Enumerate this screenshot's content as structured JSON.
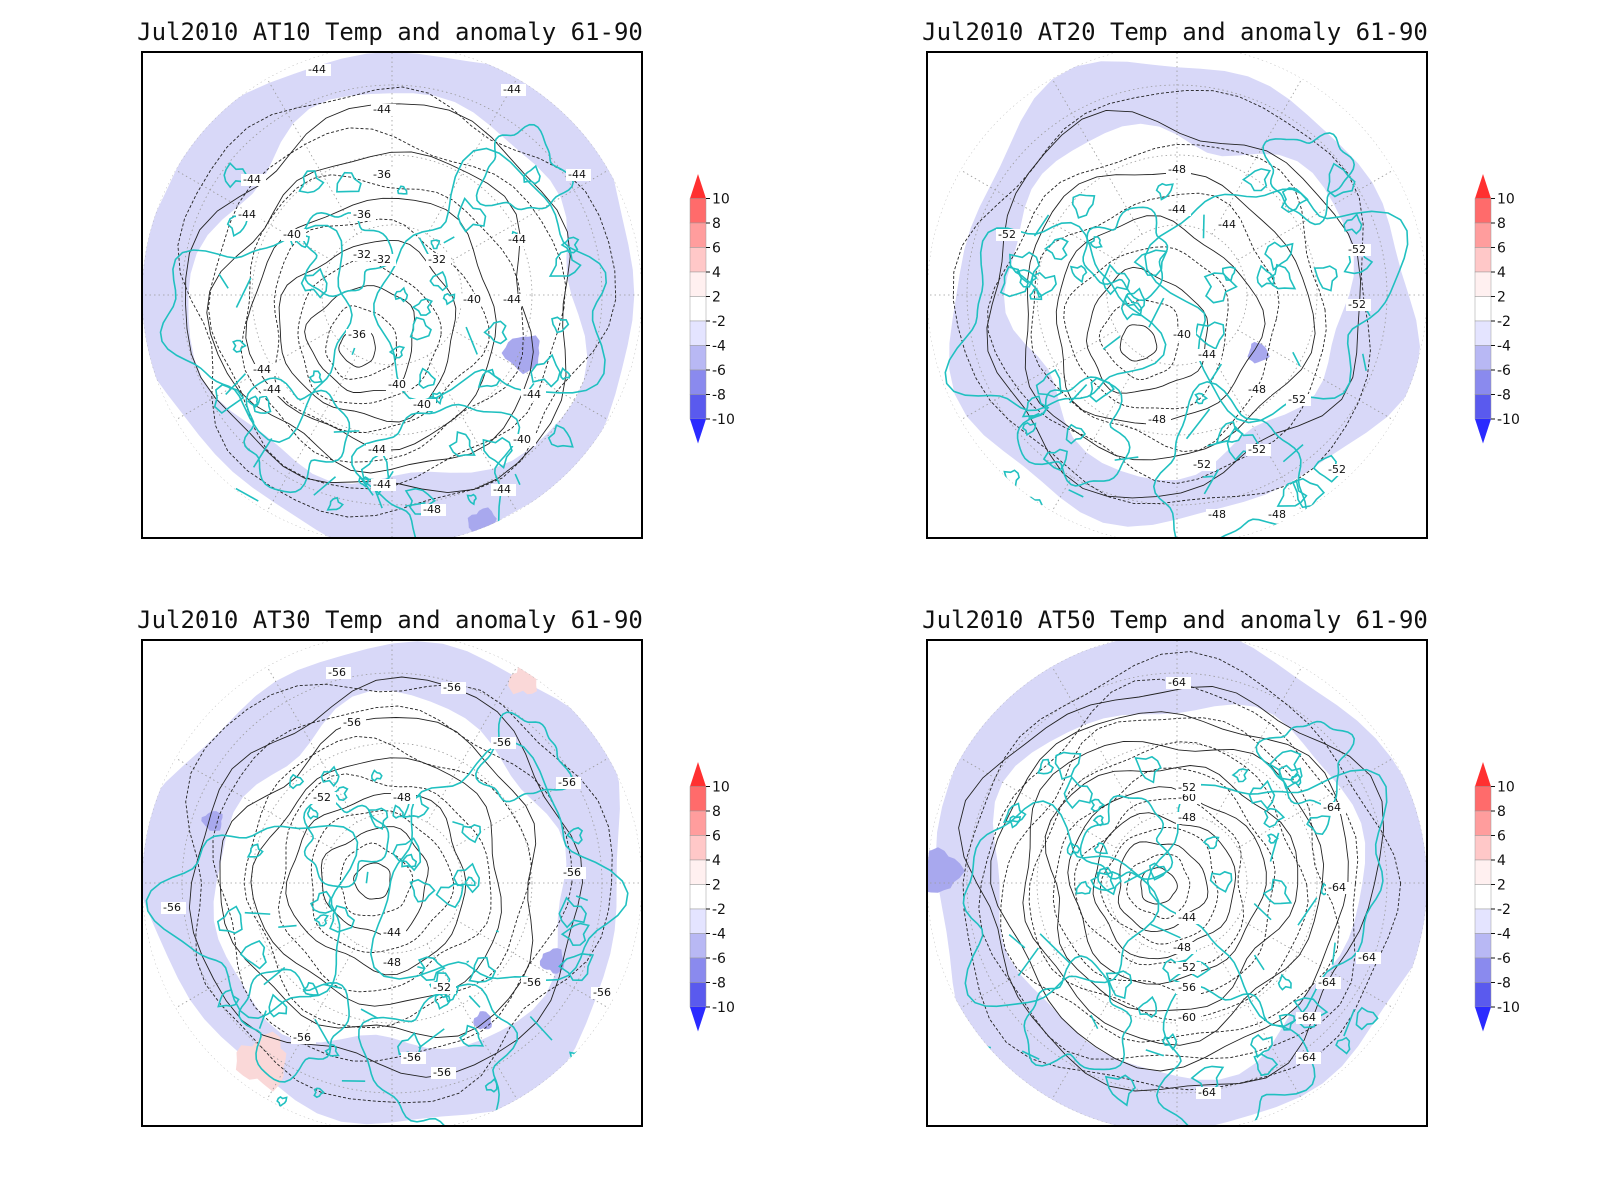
{
  "panels": [
    {
      "id": "at10",
      "title": "Jul2010 AT10 Temp and anomaly 61-90",
      "contour_labels": [
        "-44",
        "-44",
        "-44",
        "-44",
        "-44",
        "-40",
        "-36",
        "-36",
        "-32",
        "-32",
        "-32",
        "-36",
        "-40",
        "-40",
        "-44",
        "-44",
        "-40",
        "-44",
        "-44",
        "-44",
        "-48",
        "-44",
        "-44",
        "-44",
        "-44",
        "-40"
      ]
    },
    {
      "id": "at20",
      "title": "Jul2010 AT20 Temp and anomaly 61-90",
      "contour_labels": [
        "-48",
        "-44",
        "-44",
        "-52",
        "-52",
        "-52",
        "-40",
        "-44",
        "-48",
        "-52",
        "-48",
        "-52",
        "-52",
        "-52",
        "-48",
        "-48"
      ]
    },
    {
      "id": "at30",
      "title": "Jul2010 AT30 Temp and anomaly 61-90",
      "contour_labels": [
        "-56",
        "-56",
        "-56",
        "-56",
        "-52",
        "-48",
        "-56",
        "-56",
        "-44",
        "-48",
        "-52",
        "-56",
        "-56",
        "-56",
        "-56",
        "-56",
        "-56"
      ]
    },
    {
      "id": "at50",
      "title": "Jul2010 AT50 Temp and anomaly 61-90",
      "contour_labels": [
        "-64",
        "-60",
        "-52",
        "-48",
        "-44",
        "-48",
        "-52",
        "-56",
        "-60",
        "-64",
        "-64",
        "-64",
        "-64",
        "-64",
        "-64",
        "-64"
      ]
    }
  ],
  "colorbar": {
    "labels": [
      "10",
      "8",
      "6",
      "4",
      "2",
      "-2",
      "-4",
      "-6",
      "-8",
      "-10"
    ],
    "colors": [
      "#ff3030",
      "#ff6b6b",
      "#ff9d9d",
      "#ffc8c8",
      "#fff0f0",
      "#ffffff",
      "#e4e4ff",
      "#b8b8f4",
      "#8a8aee",
      "#5a5aee",
      "#2a2aff"
    ]
  },
  "colors": {
    "coast": "#20c0c0",
    "anomaly_light": "#d8d8f8",
    "anomaly_mid": "#a8a8ee",
    "warm_light": "#fad8d8"
  }
}
